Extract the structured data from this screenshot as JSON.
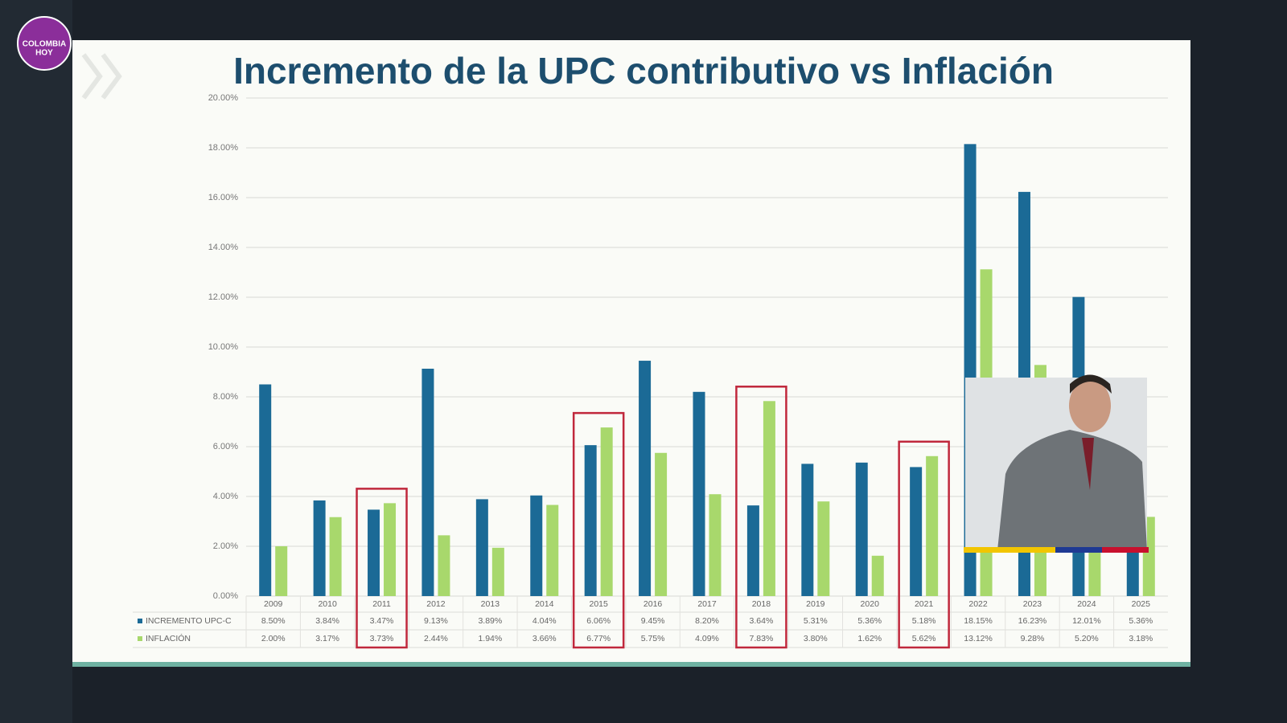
{
  "logo": {
    "line1": "COLOMBIA",
    "line2": "HOY"
  },
  "chart_data": {
    "type": "bar",
    "title": "Incremento de la UPC contributivo vs Inflación",
    "categories": [
      "2009",
      "2010",
      "2011",
      "2012",
      "2013",
      "2014",
      "2015",
      "2016",
      "2017",
      "2018",
      "2019",
      "2020",
      "2021",
      "2022",
      "2023",
      "2024",
      "2025"
    ],
    "series": [
      {
        "name": "INCREMENTO UPC-C",
        "color": "#1b6a96",
        "values": [
          8.5,
          3.84,
          3.47,
          9.13,
          3.89,
          4.04,
          6.06,
          9.45,
          8.2,
          3.64,
          5.31,
          5.36,
          5.18,
          18.15,
          16.23,
          12.01,
          5.36
        ],
        "value_labels": [
          "8.50%",
          "3.84%",
          "3.47%",
          "9.13%",
          "3.89%",
          "4.04%",
          "6.06%",
          "9.45%",
          "8.20%",
          "3.64%",
          "5.31%",
          "5.36%",
          "5.18%",
          "18.15%",
          "16.23%",
          "12.01%",
          "5.36%"
        ]
      },
      {
        "name": "INFLACIÓN",
        "color": "#a8d86c",
        "values": [
          2.0,
          3.17,
          3.73,
          2.44,
          1.94,
          3.66,
          6.77,
          5.75,
          4.09,
          7.83,
          3.8,
          1.62,
          5.62,
          13.12,
          9.28,
          5.2,
          3.18
        ],
        "value_labels": [
          "2.00%",
          "3.17%",
          "3.73%",
          "2.44%",
          "1.94%",
          "3.66%",
          "6.77%",
          "5.75%",
          "4.09%",
          "7.83%",
          "3.80%",
          "1.62%",
          "5.62%",
          "13.12%",
          "9.28%",
          "5.20%",
          "3.18%"
        ]
      }
    ],
    "ylim": [
      0,
      20
    ],
    "yticks": [
      {
        "value": 0,
        "label": "0.00%"
      },
      {
        "value": 2,
        "label": "2.00%"
      },
      {
        "value": 4,
        "label": "4.00%"
      },
      {
        "value": 6,
        "label": "6.00%"
      },
      {
        "value": 8,
        "label": "8.00%"
      },
      {
        "value": 10,
        "label": "10.00%"
      },
      {
        "value": 12,
        "label": "12.00%"
      },
      {
        "value": 14,
        "label": "14.00%"
      },
      {
        "value": 16,
        "label": "16.00%"
      },
      {
        "value": 18,
        "label": "18.00%"
      },
      {
        "value": 20,
        "label": "20.00%"
      }
    ],
    "grid": true,
    "highlight_color": "#c0283c",
    "highlights": [
      2,
      6,
      9,
      12
    ]
  }
}
